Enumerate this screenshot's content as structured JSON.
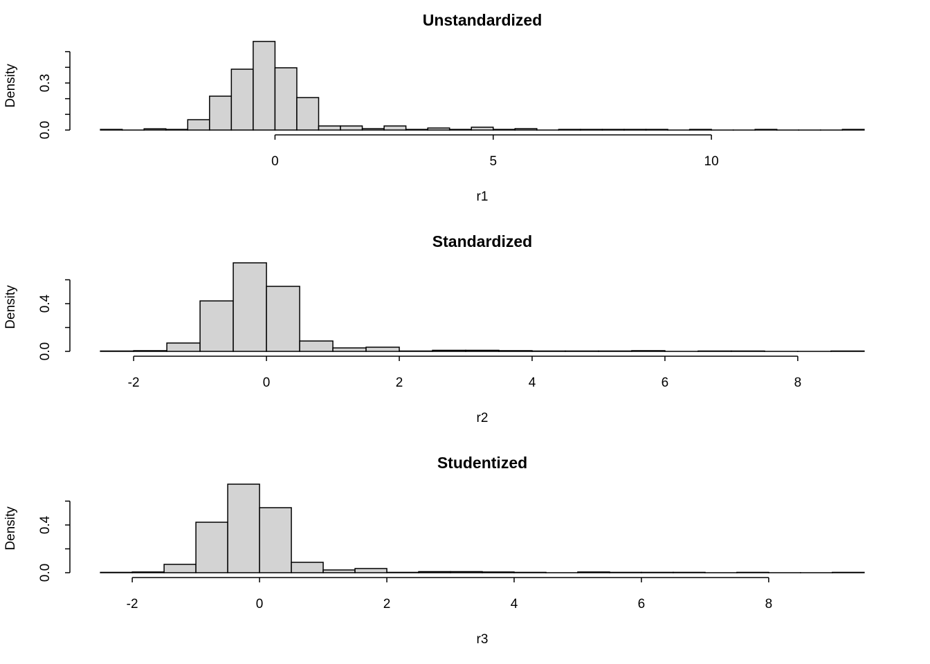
{
  "chart_data": [
    {
      "type": "bar",
      "subtype": "histogram",
      "title": "Unstandardized",
      "xlabel": "r1",
      "ylabel": "Density",
      "bin_width": 0.5,
      "breaks_start": -4,
      "values": [
        0.004,
        0,
        0.008,
        0.004,
        0.066,
        0.216,
        0.388,
        0.565,
        0.397,
        0.207,
        0.026,
        0.026,
        0.009,
        0.026,
        0.004,
        0.013,
        0.004,
        0.018,
        0.004,
        0.009,
        0,
        0.004,
        0.004,
        0.004,
        0.004,
        0.004,
        0,
        0.004,
        0,
        0,
        0.004,
        0,
        0,
        0,
        0.004
      ],
      "xlim": [
        -4,
        13.5
      ],
      "ylim": [
        0,
        0.565
      ],
      "x_ticks": [
        0,
        5,
        10
      ],
      "x_tick_labels": [
        "0",
        "5",
        "10"
      ],
      "y_ticks": [
        0,
        0.1,
        0.2,
        0.3,
        0.4,
        0.5
      ],
      "y_tick_labels": [
        "0.0",
        "",
        "",
        "0.3",
        "",
        ""
      ],
      "fill": "#D3D3D3",
      "grid": false
    },
    {
      "type": "bar",
      "subtype": "histogram",
      "title": "Standardized",
      "xlabel": "r2",
      "ylabel": "Density",
      "bin_width": 0.5,
      "breaks_start": -2.5,
      "values": [
        0.003,
        0.006,
        0.07,
        0.423,
        0.742,
        0.545,
        0.087,
        0.029,
        0.035,
        0.003,
        0.009,
        0.009,
        0.006,
        0.003,
        0.003,
        0.003,
        0.006,
        0,
        0.003,
        0.003,
        0,
        0,
        0.003
      ],
      "xlim": [
        -2.5,
        9
      ],
      "ylim": [
        0,
        0.742
      ],
      "x_ticks": [
        -2,
        0,
        2,
        4,
        6,
        8
      ],
      "x_tick_labels": [
        "-2",
        "0",
        "2",
        "4",
        "6",
        "8"
      ],
      "y_ticks": [
        0,
        0.2,
        0.4,
        0.6
      ],
      "y_tick_labels": [
        "0.0",
        "",
        "0.4",
        ""
      ],
      "fill": "#D3D3D3",
      "grid": false
    },
    {
      "type": "bar",
      "subtype": "histogram",
      "title": "Studentized",
      "xlabel": "r3",
      "ylabel": "Density",
      "bin_width": 0.5,
      "breaks_start": -2.5,
      "values": [
        0.003,
        0.006,
        0.07,
        0.423,
        0.742,
        0.545,
        0.087,
        0.023,
        0.035,
        0.003,
        0.009,
        0.009,
        0.006,
        0.003,
        0,
        0.006,
        0.003,
        0.003,
        0.003,
        0,
        0.003,
        0,
        0,
        0.003
      ],
      "xlim": [
        -2.5,
        9.5
      ],
      "ylim": [
        0,
        0.742
      ],
      "x_ticks": [
        -2,
        0,
        2,
        4,
        6,
        8
      ],
      "x_tick_labels": [
        "-2",
        "0",
        "2",
        "4",
        "6",
        "8"
      ],
      "y_ticks": [
        0,
        0.2,
        0.4,
        0.6
      ],
      "y_tick_labels": [
        "0.0",
        "",
        "0.4",
        ""
      ],
      "fill": "#D3D3D3",
      "grid": false
    }
  ]
}
